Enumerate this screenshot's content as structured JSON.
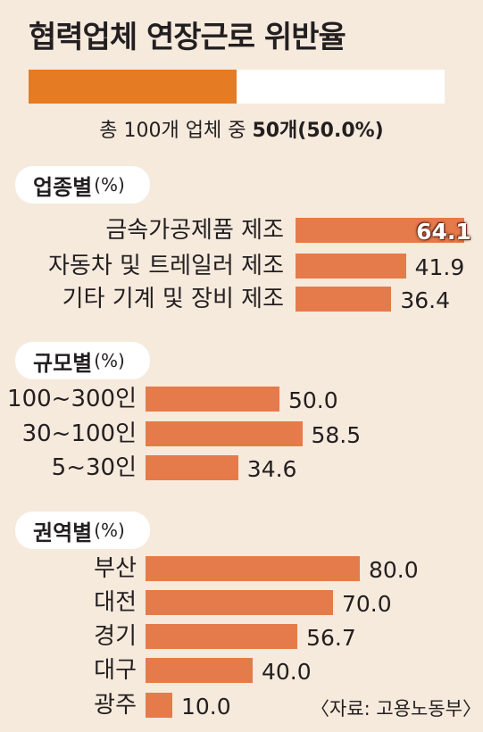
{
  "title": "협력업체 연장근로 위반율",
  "summary": {
    "prefix": "총 100개 업체 중 ",
    "highlight": "50개(50.0%)",
    "fraction": 0.5
  },
  "colors": {
    "background": "#f6eadd",
    "bar": "#e57b4a",
    "summary_bar": "#e57b22",
    "panel": "#ffffff"
  },
  "chart_data": [
    {
      "type": "bar",
      "orientation": "horizontal",
      "group_label": "업종별",
      "unit_label": "(%)",
      "categories": [
        "금속가공제품 제조",
        "자동차 및 트레일러 제조",
        "기타 기계 및 장비 제조"
      ],
      "values": [
        64.1,
        41.9,
        36.4
      ],
      "value_labels": [
        "64.1",
        "41.9",
        "36.4"
      ]
    },
    {
      "type": "bar",
      "orientation": "horizontal",
      "group_label": "규모별",
      "unit_label": "(%)",
      "categories": [
        "100~300인",
        "30~100인",
        "5~30인"
      ],
      "values": [
        50.0,
        58.5,
        34.6
      ],
      "value_labels": [
        "50.0",
        "58.5",
        "34.6"
      ]
    },
    {
      "type": "bar",
      "orientation": "horizontal",
      "group_label": "권역별",
      "unit_label": "(%)",
      "categories": [
        "부산",
        "대전",
        "경기",
        "대구",
        "광주"
      ],
      "values": [
        80.0,
        70.0,
        56.7,
        40.0,
        10.0
      ],
      "value_labels": [
        "80.0",
        "70.0",
        "56.7",
        "40.0",
        "10.0"
      ]
    }
  ],
  "source": "〈자료: 고용노동부〉"
}
